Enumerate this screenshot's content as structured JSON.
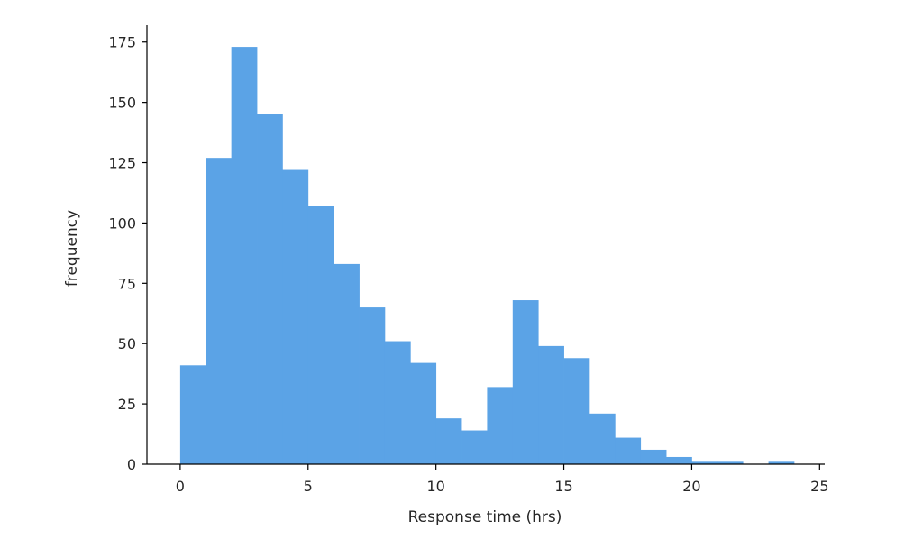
{
  "chart_data": {
    "type": "bar",
    "subtype": "histogram",
    "title": "",
    "xlabel": "Response time (hrs)",
    "ylabel": "frequency",
    "xlim": [
      -1.3,
      25.2
    ],
    "ylim": [
      0,
      182
    ],
    "xticks": [
      0,
      5,
      10,
      15,
      20,
      25
    ],
    "yticks": [
      0,
      25,
      50,
      75,
      100,
      125,
      150,
      175
    ],
    "bin_width": 1,
    "bins_start": [
      0,
      1,
      2,
      3,
      4,
      5,
      6,
      7,
      8,
      9,
      10,
      11,
      12,
      13,
      14,
      15,
      16,
      17,
      18,
      19,
      20,
      21,
      22,
      23
    ],
    "values": [
      41,
      127,
      173,
      145,
      122,
      107,
      83,
      65,
      51,
      42,
      19,
      14,
      32,
      68,
      49,
      44,
      21,
      11,
      6,
      3,
      1,
      1,
      0,
      1
    ],
    "bar_color": "#5ba3e6",
    "grid": false,
    "legend": "none",
    "spines": "left-bottom"
  }
}
